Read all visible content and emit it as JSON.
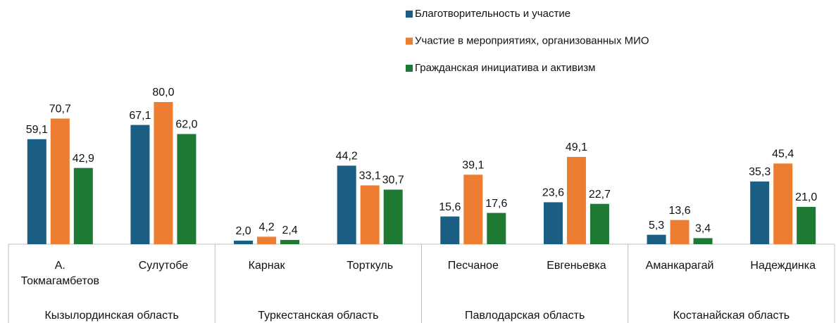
{
  "chart_data": {
    "type": "bar",
    "groups": [
      {
        "name": "Кызылординская область",
        "categories": [
          "А. Токмагамбетов",
          "Сулутобе"
        ]
      },
      {
        "name": "Туркестанская область",
        "categories": [
          "Карнак",
          "Торткуль"
        ]
      },
      {
        "name": "Павлодарская область",
        "categories": [
          "Песчаное",
          "Евгеньевка"
        ]
      },
      {
        "name": "Костанайская область",
        "categories": [
          "Аманкарагай",
          "Надеждинка"
        ]
      }
    ],
    "series": [
      {
        "name": "Благотворительность и участие",
        "color": "#1b5e84",
        "values": [
          59.1,
          67.1,
          2.0,
          44.2,
          15.6,
          23.6,
          5.3,
          35.3
        ],
        "value_labels": [
          "59,1",
          "67,1",
          "2,0",
          "44,2",
          "15,6",
          "23,6",
          "5,3",
          "35,3"
        ]
      },
      {
        "name": "Участие в мероприятиях, организованных МИО",
        "color": "#ed7d31",
        "values": [
          70.7,
          80.0,
          4.2,
          33.1,
          39.1,
          49.1,
          13.6,
          45.4
        ],
        "value_labels": [
          "70,7",
          "80,0",
          "4,2",
          "33,1",
          "39,1",
          "49,1",
          "13,6",
          "45,4"
        ]
      },
      {
        "name": "Гражданская инициатива и активизм",
        "color": "#1e7a33",
        "values": [
          42.9,
          62.0,
          2.4,
          30.7,
          17.6,
          22.7,
          3.4,
          21.0
        ],
        "value_labels": [
          "42,9",
          "62,0",
          "2,4",
          "30,7",
          "17,6",
          "22,7",
          "3,4",
          "21,0"
        ]
      }
    ],
    "legend": "top-right"
  }
}
